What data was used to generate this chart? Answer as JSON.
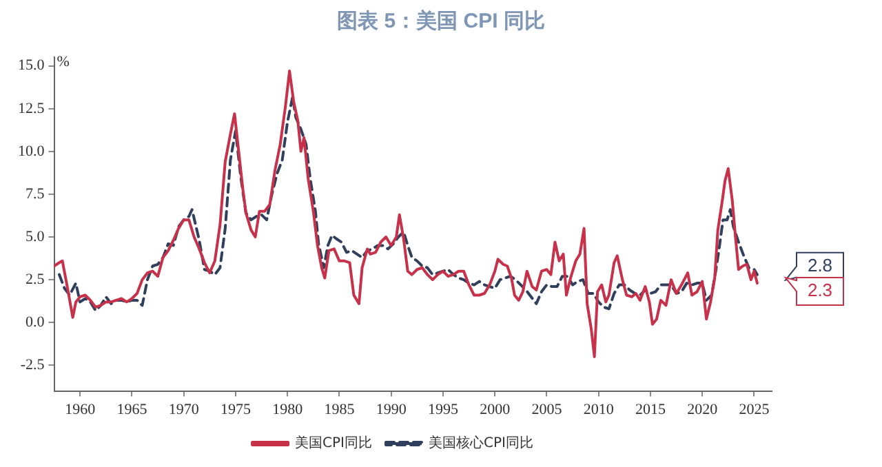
{
  "chart_data": {
    "type": "line",
    "title": "图表 5：美国 CPI 同比",
    "ylabel": "%",
    "xlim": [
      1957.5,
      2026.7
    ],
    "xticks": [
      1960,
      1965,
      1970,
      1975,
      1980,
      1985,
      1990,
      1995,
      2000,
      2005,
      2010,
      2015,
      2020,
      2025
    ],
    "ylim": [
      -4,
      15.5
    ],
    "yticks": [
      -2.5,
      {
        "value": 0,
        "label": "0.0"
      },
      2.5,
      {
        "value": 5,
        "label": "5.0"
      },
      7.5,
      {
        "value": 10,
        "label": "10.0"
      },
      12.5,
      {
        "value": 15,
        "label": "15.0"
      }
    ],
    "grid": false,
    "legend": "bottom",
    "marker": "none",
    "annotations": [
      {
        "text": "2.8",
        "x": 2025.3,
        "y": 2.8
      },
      {
        "text": "2.3",
        "x": 2025.3,
        "y": 2.3
      }
    ],
    "series": [
      {
        "name": "美国CPI同比",
        "color": "#c8314a",
        "line_style": "solid",
        "x": [
          1957.5,
          1958,
          1958.3,
          1958.8,
          1959.3,
          1959.6,
          1960,
          1960.5,
          1961,
          1961.5,
          1962,
          1962.5,
          1963,
          1963.5,
          1964,
          1964.5,
          1965,
          1965.5,
          1966,
          1966.5,
          1967,
          1967.5,
          1968,
          1968.5,
          1969,
          1969.5,
          1970,
          1970.5,
          1971,
          1971.5,
          1972,
          1972.5,
          1973,
          1973.5,
          1974,
          1974.5,
          1974.9,
          1975.3,
          1975.7,
          1976,
          1976.5,
          1976.9,
          1977.3,
          1977.8,
          1978.3,
          1978.8,
          1979.3,
          1979.8,
          1980.2,
          1980.6,
          1981,
          1981.3,
          1981.6,
          1982,
          1982.5,
          1982.9,
          1983.3,
          1983.6,
          1984,
          1984.5,
          1985,
          1985.5,
          1986,
          1986.4,
          1986.9,
          1987.2,
          1987.7,
          1988,
          1988.5,
          1989,
          1989.5,
          1990,
          1990.5,
          1990.8,
          1991.2,
          1991.6,
          1992,
          1992.5,
          1993,
          1993.5,
          1994,
          1994.5,
          1995,
          1995.5,
          1996,
          1996.5,
          1997,
          1997.5,
          1998,
          1998.5,
          1999,
          1999.5,
          2000,
          2000.3,
          2000.8,
          2001.2,
          2001.6,
          2001.9,
          2002.3,
          2002.7,
          2003.1,
          2003.6,
          2004,
          2004.5,
          2005,
          2005.4,
          2005.8,
          2006.2,
          2006.6,
          2006.9,
          2007.3,
          2007.8,
          2008.2,
          2008.6,
          2008.9,
          2009.3,
          2009.6,
          2009.9,
          2010.3,
          2010.7,
          2011,
          2011.5,
          2011.8,
          2012.3,
          2012.7,
          2013.2,
          2013.6,
          2014,
          2014.5,
          2014.9,
          2015.2,
          2015.6,
          2016,
          2016.5,
          2017,
          2017.5,
          2018,
          2018.6,
          2019,
          2019.5,
          2020,
          2020.4,
          2020.8,
          2021.2,
          2021.5,
          2021.9,
          2022.2,
          2022.5,
          2022.9,
          2023.2,
          2023.5,
          2023.9,
          2024.3,
          2024.7,
          2025,
          2025.3
        ],
        "values": [
          3.3,
          3.5,
          3.6,
          2.0,
          0.3,
          1.2,
          1.5,
          1.6,
          1.3,
          0.9,
          1.0,
          1.2,
          1.2,
          1.3,
          1.4,
          1.2,
          1.4,
          1.7,
          2.5,
          2.9,
          3.0,
          2.7,
          3.8,
          4.2,
          4.8,
          5.5,
          6.0,
          6.0,
          5.0,
          4.3,
          3.5,
          2.9,
          3.6,
          5.7,
          9.4,
          11.0,
          12.2,
          10.0,
          7.8,
          6.4,
          5.4,
          5.0,
          6.5,
          6.5,
          6.9,
          8.9,
          10.4,
          12.6,
          14.7,
          12.9,
          11.8,
          10.0,
          10.8,
          8.4,
          6.5,
          4.5,
          3.2,
          2.6,
          4.2,
          4.3,
          3.6,
          3.6,
          3.5,
          1.6,
          1.1,
          3.2,
          4.3,
          4.0,
          4.1,
          4.7,
          5.0,
          4.5,
          5.0,
          6.3,
          4.9,
          3.0,
          2.8,
          3.1,
          3.2,
          2.8,
          2.5,
          2.8,
          3.0,
          2.7,
          2.8,
          3.0,
          3.0,
          2.2,
          1.6,
          1.6,
          1.7,
          2.2,
          3.0,
          3.7,
          3.4,
          3.3,
          2.6,
          1.6,
          1.3,
          1.8,
          3.0,
          2.1,
          1.9,
          3.0,
          3.1,
          2.8,
          4.7,
          3.6,
          4.0,
          1.6,
          2.6,
          3.6,
          4.0,
          5.5,
          1.1,
          -0.4,
          -2.0,
          1.8,
          2.2,
          1.2,
          1.6,
          3.5,
          3.9,
          2.5,
          1.6,
          1.5,
          1.7,
          1.3,
          2.1,
          1.2,
          -0.1,
          0.2,
          1.3,
          1.0,
          2.5,
          1.7,
          2.2,
          2.9,
          1.6,
          1.8,
          2.4,
          0.2,
          1.2,
          2.6,
          5.4,
          7.0,
          8.3,
          9.0,
          7.1,
          5.0,
          3.1,
          3.3,
          3.4,
          2.5,
          3.0,
          2.3
        ]
      },
      {
        "name": "美国核心CPI同比",
        "color": "#2f3f5c",
        "line_style": "dashed",
        "x": [
          1958,
          1958.5,
          1959,
          1959.6,
          1960,
          1960.5,
          1961,
          1961.5,
          1962,
          1962.5,
          1963,
          1963.5,
          1964,
          1964.5,
          1965,
          1965.5,
          1966,
          1966.5,
          1967,
          1967.5,
          1968,
          1968.5,
          1969,
          1969.5,
          1970,
          1970.5,
          1970.8,
          1971.5,
          1972,
          1972.5,
          1973,
          1973.5,
          1974,
          1974.5,
          1975,
          1975.5,
          1976,
          1976.5,
          1977,
          1977.5,
          1978,
          1978.5,
          1979,
          1979.5,
          1980,
          1980.5,
          1980.8,
          1981.3,
          1981.8,
          1982.2,
          1982.7,
          1983,
          1983.5,
          1983.9,
          1984.3,
          1984.7,
          1985.2,
          1985.7,
          1986.2,
          1986.7,
          1987.2,
          1987.7,
          1988.2,
          1988.7,
          1989.2,
          1989.7,
          1990.2,
          1990.7,
          1991.2,
          1991.6,
          1992,
          1992.5,
          1993,
          1993.5,
          1994,
          1994.5,
          1995,
          1995.5,
          1996,
          1996.5,
          1997,
          1997.5,
          1998,
          1998.5,
          1999,
          1999.5,
          2000,
          2000.5,
          2001,
          2001.5,
          2002,
          2002.5,
          2003,
          2003.5,
          2004,
          2004.5,
          2005,
          2005.5,
          2006,
          2006.5,
          2007,
          2007.5,
          2008,
          2008.5,
          2009,
          2009.5,
          2010,
          2010.5,
          2011,
          2011.5,
          2012,
          2012.5,
          2013,
          2013.5,
          2014,
          2014.5,
          2015,
          2015.5,
          2016,
          2016.5,
          2017,
          2017.5,
          2018,
          2018.5,
          2019,
          2019.5,
          2020,
          2020.4,
          2020.9,
          2021.3,
          2021.6,
          2022,
          2022.4,
          2022.7,
          2023,
          2023.5,
          2024,
          2024.5,
          2025,
          2025.3
        ],
        "values": [
          2.8,
          2.0,
          1.6,
          2.3,
          1.2,
          1.4,
          1.2,
          0.7,
          1.0,
          1.5,
          1.1,
          1.3,
          1.3,
          1.2,
          1.3,
          1.3,
          1.0,
          2.5,
          3.3,
          3.4,
          3.8,
          4.6,
          4.5,
          5.6,
          6.0,
          6.2,
          6.6,
          4.8,
          3.1,
          3.0,
          2.8,
          3.2,
          5.5,
          9.5,
          11.2,
          8.5,
          6.4,
          6.0,
          6.2,
          6.3,
          6.0,
          7.5,
          8.7,
          9.5,
          11.7,
          13.2,
          12.0,
          11.3,
          10.4,
          8.4,
          6.5,
          4.6,
          3.2,
          4.5,
          5.1,
          4.9,
          4.7,
          4.1,
          4.2,
          4.0,
          3.8,
          4.2,
          4.3,
          4.5,
          4.5,
          4.3,
          4.6,
          5.0,
          5.3,
          4.5,
          3.8,
          3.6,
          3.3,
          3.2,
          2.8,
          2.9,
          3.0,
          3.1,
          2.8,
          2.6,
          2.5,
          2.3,
          2.2,
          2.4,
          2.2,
          2.1,
          2.0,
          2.5,
          2.6,
          2.7,
          2.5,
          2.2,
          1.9,
          1.5,
          1.1,
          1.8,
          2.2,
          2.1,
          2.1,
          2.7,
          2.7,
          2.2,
          2.4,
          2.5,
          1.7,
          1.7,
          1.2,
          0.9,
          0.8,
          1.7,
          2.2,
          2.2,
          1.9,
          1.7,
          1.6,
          1.9,
          1.7,
          1.8,
          2.2,
          2.2,
          2.2,
          1.7,
          1.8,
          2.3,
          2.2,
          2.3,
          2.3,
          1.3,
          1.6,
          3.0,
          4.2,
          6.0,
          6.0,
          6.6,
          5.6,
          4.7,
          3.9,
          3.2,
          3.1,
          2.8
        ]
      }
    ]
  }
}
